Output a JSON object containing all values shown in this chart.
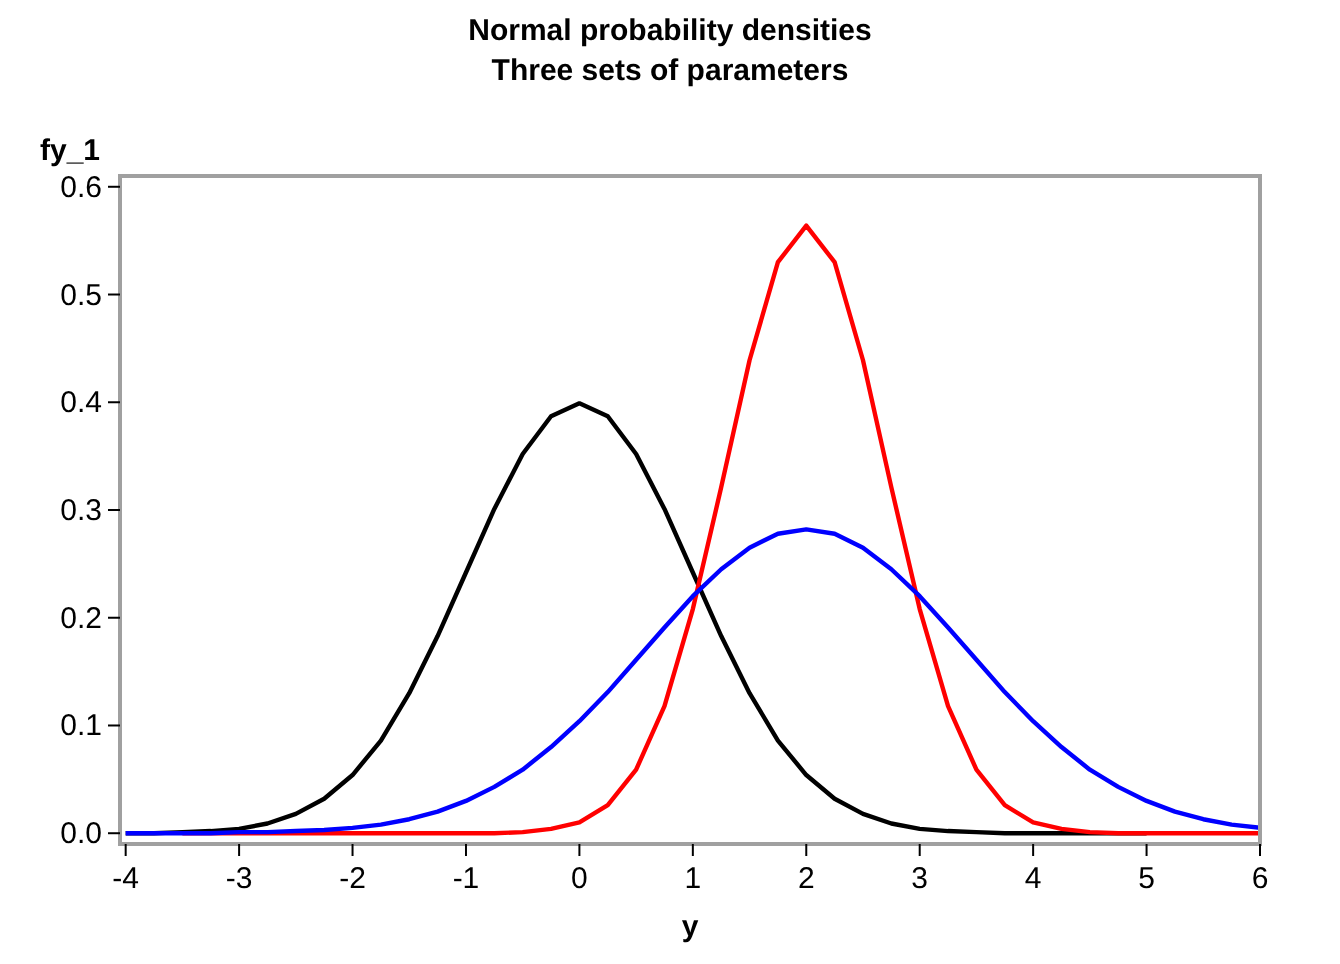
{
  "chart_data": {
    "type": "line",
    "title": "Normal probability densities",
    "subtitle": "Three sets of parameters",
    "xlabel": "y",
    "ylabel": "fy_1",
    "x": [
      -4,
      -3.75,
      -3.5,
      -3.25,
      -3,
      -2.75,
      -2.5,
      -2.25,
      -2,
      -1.75,
      -1.5,
      -1.25,
      -1,
      -0.75,
      -0.5,
      -0.25,
      0,
      0.25,
      0.5,
      0.75,
      1,
      1.25,
      1.5,
      1.75,
      2,
      2.25,
      2.5,
      2.75,
      3,
      3.25,
      3.5,
      3.75,
      4,
      4.25,
      4.5,
      4.75,
      5,
      5.25,
      5.5,
      5.75,
      6
    ],
    "series": [
      {
        "color": "#000000",
        "values": [
          0,
          0,
          0.001,
          0.002,
          0.004,
          0.009,
          0.018,
          0.032,
          0.054,
          0.086,
          0.13,
          0.183,
          0.242,
          0.301,
          0.352,
          0.387,
          0.399,
          0.387,
          0.352,
          0.301,
          0.242,
          0.183,
          0.13,
          0.086,
          0.054,
          0.032,
          0.018,
          0.009,
          0.004,
          0.002,
          0.001,
          0,
          0,
          0,
          0,
          0,
          0,
          null,
          null,
          null,
          null
        ]
      },
      {
        "color": "#ff0000",
        "values": [
          null,
          null,
          0,
          0,
          0,
          0,
          0,
          0,
          0,
          0,
          0,
          0,
          0,
          0,
          0.001,
          0.004,
          0.01,
          0.026,
          0.059,
          0.118,
          0.208,
          0.321,
          0.439,
          0.53,
          0.564,
          0.53,
          0.439,
          0.321,
          0.208,
          0.118,
          0.059,
          0.026,
          0.01,
          0.004,
          0.001,
          0,
          0,
          0,
          0,
          0,
          0
        ]
      },
      {
        "color": "#0000ff",
        "values": [
          0,
          0,
          0,
          0,
          0.001,
          0.001,
          0.002,
          0.003,
          0.005,
          0.008,
          0.013,
          0.02,
          0.03,
          0.043,
          0.059,
          0.08,
          0.104,
          0.131,
          0.161,
          0.191,
          0.22,
          0.245,
          0.265,
          0.278,
          0.282,
          0.278,
          0.265,
          0.245,
          0.22,
          0.191,
          0.161,
          0.131,
          0.104,
          0.08,
          0.059,
          0.043,
          0.03,
          0.02,
          0.013,
          0.008,
          0.005
        ]
      }
    ],
    "xlim": [
      -4.05,
      6
    ],
    "xticks": [
      -4,
      -3,
      -2,
      -1,
      0,
      1,
      2,
      3,
      4,
      5,
      6
    ],
    "ylim": [
      -0.01,
      0.61
    ],
    "yticks": [
      {
        "value": 0,
        "label": "0.0"
      },
      0.1,
      0.2,
      0.3,
      0.4,
      0.5,
      0.6
    ],
    "marker": "none",
    "line_style": "solid",
    "grid": false
  }
}
